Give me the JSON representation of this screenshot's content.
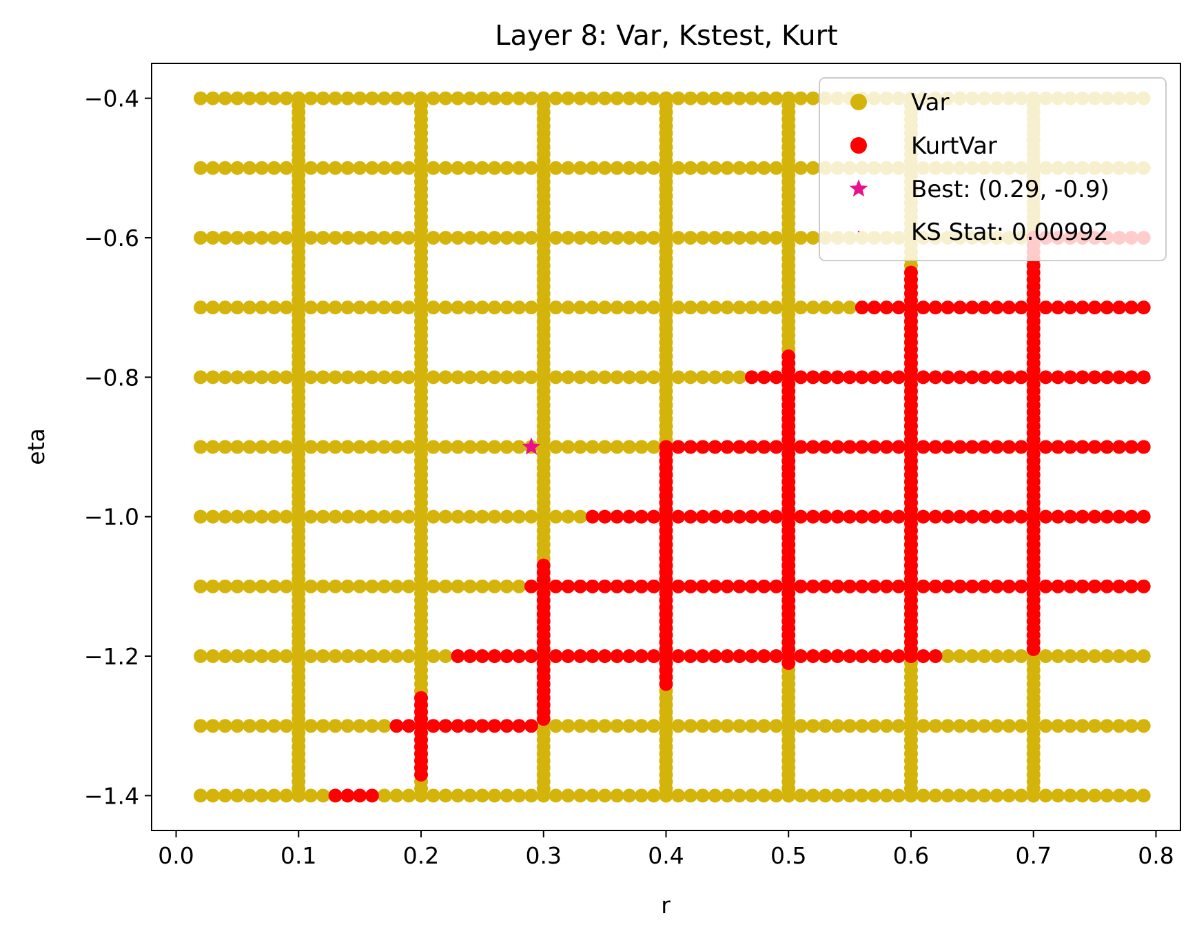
{
  "chart_data": {
    "type": "scatter",
    "title": "Layer 8: Var, Kstest, Kurt",
    "xlabel": "r",
    "ylabel": "eta",
    "xlim": [
      -0.02,
      0.82
    ],
    "ylim": [
      -1.45,
      -0.35
    ],
    "x_ticks": [
      {
        "value": 0.0,
        "label": "0.0"
      },
      {
        "value": 0.1,
        "label": "0.1"
      },
      {
        "value": 0.2,
        "label": "0.2"
      },
      {
        "value": 0.3,
        "label": "0.3"
      },
      {
        "value": 0.4,
        "label": "0.4"
      },
      {
        "value": 0.5,
        "label": "0.5"
      },
      {
        "value": 0.6,
        "label": "0.6"
      },
      {
        "value": 0.7,
        "label": "0.7"
      },
      {
        "value": 0.8,
        "label": "0.8"
      }
    ],
    "y_ticks": [
      {
        "value": -0.4,
        "label": "−0.4"
      },
      {
        "value": -0.6,
        "label": "−0.6"
      },
      {
        "value": -0.8,
        "label": "−0.8"
      },
      {
        "value": -1.0,
        "label": "−1.0"
      },
      {
        "value": -1.2,
        "label": "−1.2"
      },
      {
        "value": -1.4,
        "label": "−1.4"
      }
    ],
    "grid": false,
    "legend_position": "top-right",
    "colors": {
      "var": "#d4b40a",
      "kurtvar": "#ff0000",
      "best": "#e8108c"
    },
    "grid_sampling": {
      "row_etas": [
        -0.4,
        -0.5,
        -0.6,
        -0.7,
        -0.8,
        -0.9,
        -1.0,
        -1.1,
        -1.2,
        -1.3,
        -1.4
      ],
      "row_r_range": [
        0.02,
        0.79
      ],
      "row_r_step": 0.01,
      "column_rs": [
        0.1,
        0.2,
        0.3,
        0.4,
        0.5,
        0.6,
        0.7
      ],
      "column_eta_range": [
        -1.4,
        -0.4
      ],
      "column_eta_step": 0.01
    },
    "series": [
      {
        "name": "Var",
        "marker": "circle",
        "color": "#d4b40a",
        "description_points": "all grid points not in KurtVar"
      },
      {
        "name": "KurtVar",
        "marker": "circle",
        "color": "#ff0000",
        "row_segments": [
          {
            "eta": -0.6,
            "r_range": [
              0.71,
              0.79
            ]
          },
          {
            "eta": -0.7,
            "r_range": [
              0.56,
              0.79
            ]
          },
          {
            "eta": -0.8,
            "r_range": [
              0.47,
              0.79
            ]
          },
          {
            "eta": -0.9,
            "r_range": [
              0.41,
              0.79
            ]
          },
          {
            "eta": -1.0,
            "r_range": [
              0.34,
              0.79
            ]
          },
          {
            "eta": -1.1,
            "r_range": [
              0.29,
              0.79
            ]
          },
          {
            "eta": -1.2,
            "r_range": [
              0.23,
              0.62
            ]
          },
          {
            "eta": -1.3,
            "r_range": [
              0.18,
              0.29
            ]
          },
          {
            "eta": -1.4,
            "r_range": [
              0.13,
              0.16
            ]
          }
        ],
        "column_segments": [
          {
            "r": 0.2,
            "eta_range": [
              -1.37,
              -1.26
            ]
          },
          {
            "r": 0.3,
            "eta_range": [
              -1.29,
              -1.07
            ]
          },
          {
            "r": 0.4,
            "eta_range": [
              -1.24,
              -0.9
            ]
          },
          {
            "r": 0.5,
            "eta_range": [
              -1.21,
              -0.77
            ]
          },
          {
            "r": 0.6,
            "eta_range": [
              -1.2,
              -0.65
            ]
          },
          {
            "r": 0.7,
            "eta_range": [
              -1.19,
              -0.6
            ]
          }
        ]
      },
      {
        "name": "Best: (0.29, -0.9)",
        "marker": "star",
        "color": "#e8108c",
        "points": [
          {
            "x": 0.29,
            "y": -0.9
          }
        ]
      },
      {
        "name": "KS Stat: 0.00992",
        "marker": "point",
        "color": "#e8108c",
        "points": []
      }
    ]
  }
}
